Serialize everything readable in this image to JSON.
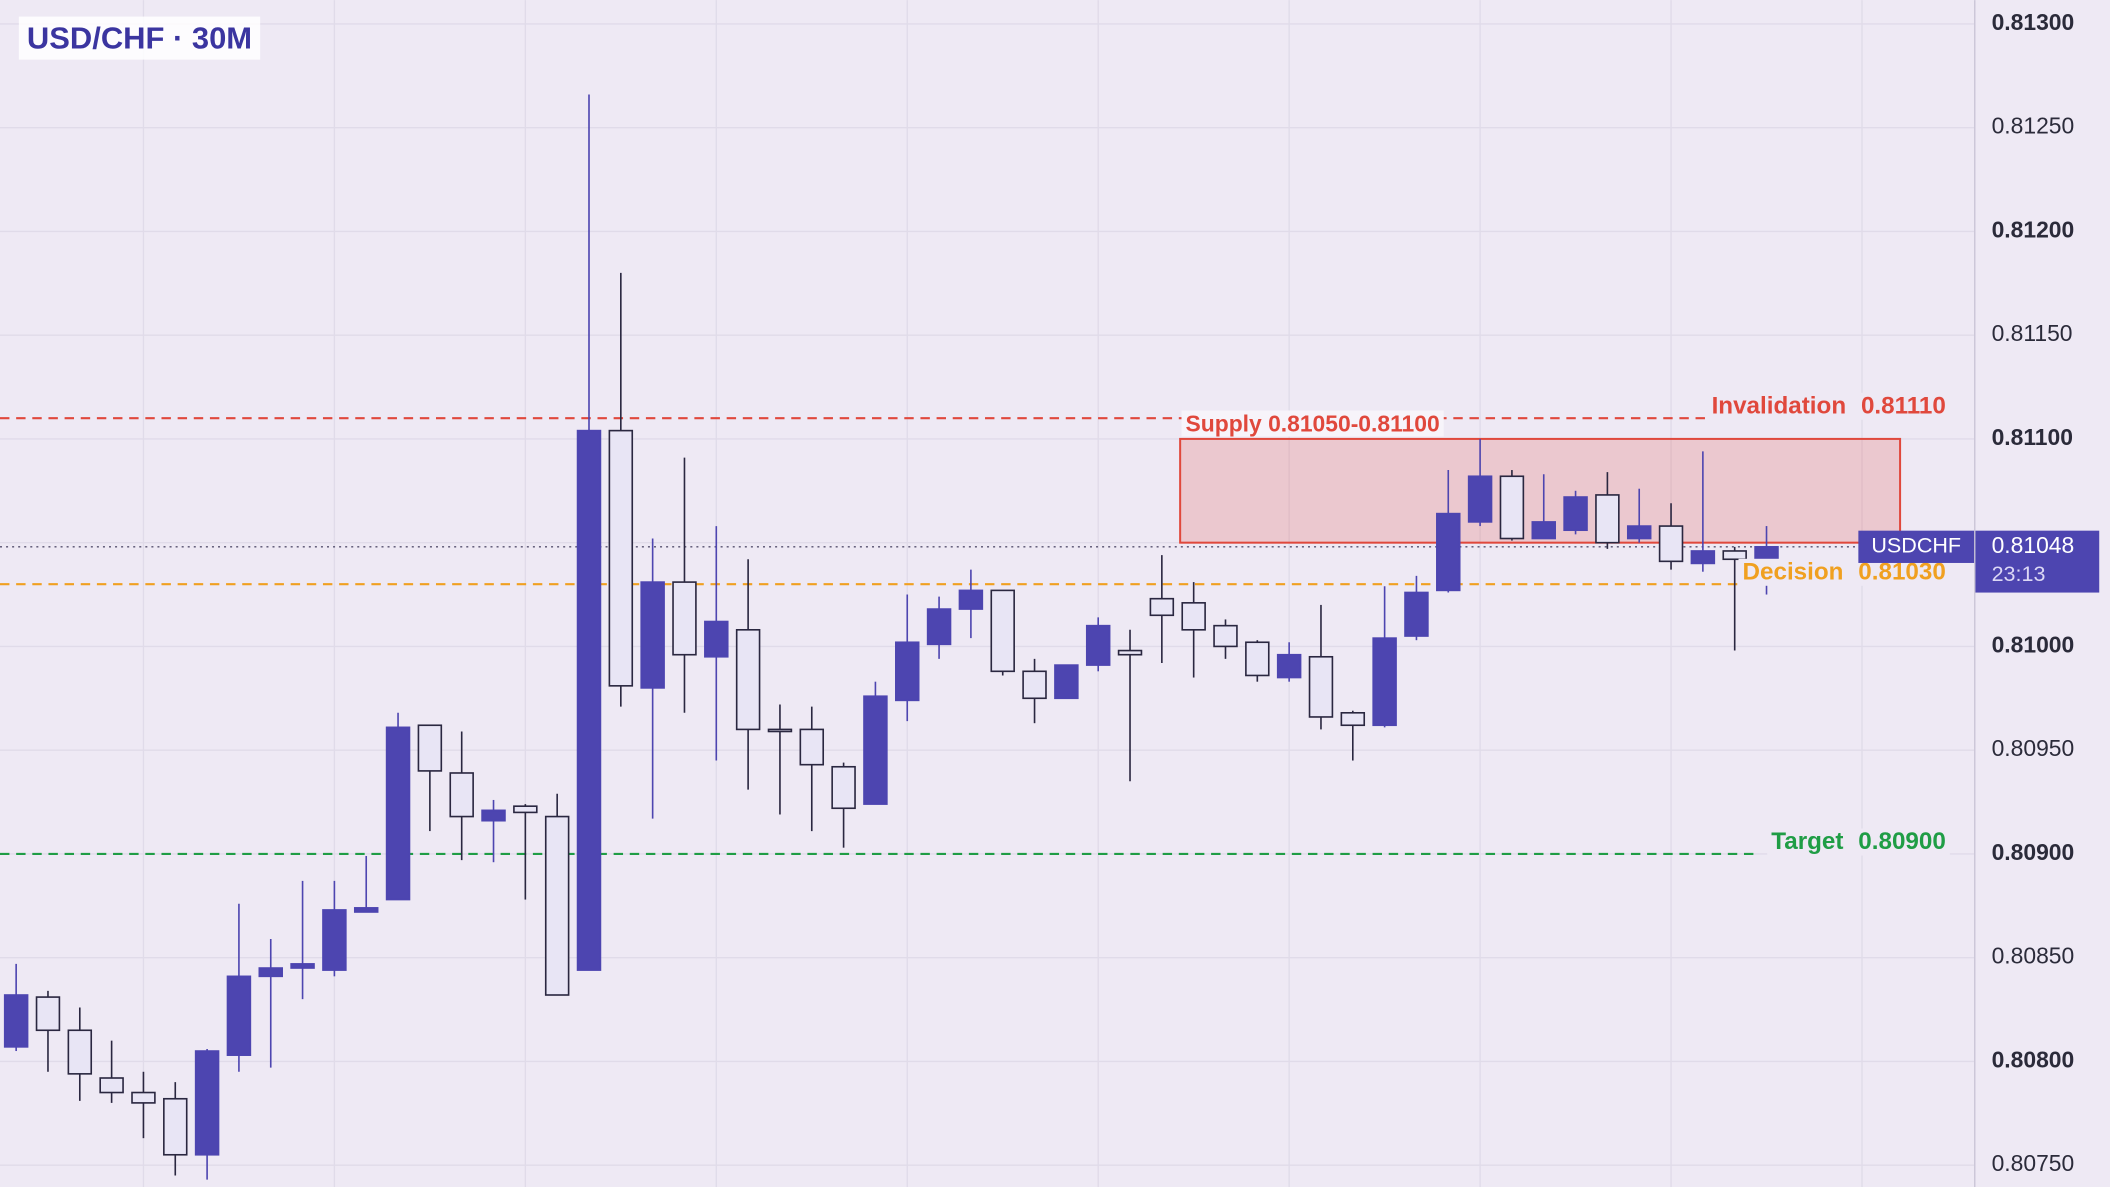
{
  "chart_data": {
    "type": "candlestick",
    "title": "USD/CHF · 30M",
    "up_color": "#4d45b0",
    "down_color": "#e8e5f5",
    "open": [
      0.80807,
      0.80831,
      0.80815,
      0.80792,
      0.80785,
      0.80782,
      0.80755,
      0.80803,
      0.80841,
      0.80845,
      0.80844,
      0.80872,
      0.80878,
      0.80962,
      0.80939,
      0.80916,
      0.80923,
      0.80918,
      0.80844,
      0.81104,
      0.8098,
      0.81031,
      0.80995,
      0.81008,
      0.8096,
      0.8096,
      0.80942,
      0.80924,
      0.80974,
      0.81001,
      0.81018,
      0.81027,
      0.80988,
      0.80975,
      0.80991,
      0.80998,
      0.81023,
      0.81021,
      0.8101,
      0.81002,
      0.80985,
      0.80995,
      0.80968,
      0.80962,
      0.81005,
      0.81027,
      0.8106,
      0.81082,
      0.81052,
      0.81056,
      0.81073,
      0.81052,
      0.81058,
      0.8104,
      0.81046,
      0.8104
    ],
    "high": [
      0.80847,
      0.80834,
      0.80826,
      0.8081,
      0.80795,
      0.8079,
      0.80806,
      0.80876,
      0.80859,
      0.80887,
      0.80887,
      0.80899,
      0.80968,
      0.80962,
      0.80959,
      0.80926,
      0.80924,
      0.80929,
      0.81266,
      0.8118,
      0.81052,
      0.81091,
      0.81058,
      0.81042,
      0.80972,
      0.80971,
      0.80944,
      0.80983,
      0.81025,
      0.81024,
      0.81037,
      0.81027,
      0.80994,
      0.80991,
      0.81014,
      0.81008,
      0.81044,
      0.81031,
      0.81013,
      0.81003,
      0.81002,
      0.8102,
      0.80969,
      0.81029,
      0.81034,
      0.81085,
      0.811,
      0.81085,
      0.81083,
      0.81075,
      0.81084,
      0.81076,
      0.81069,
      0.81094,
      0.81048,
      0.81058
    ],
    "low": [
      0.80805,
      0.80795,
      0.80781,
      0.8078,
      0.80763,
      0.80745,
      0.80743,
      0.80795,
      0.80797,
      0.8083,
      0.80841,
      0.80872,
      0.80878,
      0.80911,
      0.80897,
      0.80896,
      0.80878,
      0.80835,
      0.80844,
      0.80971,
      0.80917,
      0.80968,
      0.80945,
      0.80931,
      0.80919,
      0.80911,
      0.80903,
      0.80924,
      0.80964,
      0.80994,
      0.81004,
      0.80986,
      0.80963,
      0.80975,
      0.80988,
      0.80935,
      0.80992,
      0.80985,
      0.80994,
      0.80983,
      0.80983,
      0.8096,
      0.80945,
      0.80961,
      0.81003,
      0.81026,
      0.81058,
      0.81051,
      0.81052,
      0.81054,
      0.81047,
      0.8105,
      0.81037,
      0.81036,
      0.80998,
      0.81025
    ],
    "close": [
      0.80832,
      0.80815,
      0.80794,
      0.80785,
      0.8078,
      0.80755,
      0.80805,
      0.80841,
      0.80845,
      0.80847,
      0.80873,
      0.80874,
      0.80961,
      0.8094,
      0.80918,
      0.80921,
      0.8092,
      0.80832,
      0.81104,
      0.80981,
      0.81031,
      0.80996,
      0.81012,
      0.8096,
      0.80959,
      0.80943,
      0.80922,
      0.80976,
      0.81002,
      0.81018,
      0.81027,
      0.80988,
      0.80975,
      0.80991,
      0.8101,
      0.80996,
      0.81015,
      0.81008,
      0.81,
      0.80986,
      0.80996,
      0.80966,
      0.80962,
      0.81004,
      0.81026,
      0.81064,
      0.81082,
      0.81052,
      0.8106,
      0.81072,
      0.8105,
      0.81058,
      0.81041,
      0.81046,
      0.81042,
      0.81048
    ],
    "ylim": [
      0.807395,
      0.813115
    ],
    "yticks": [
      {
        "value": 0.8075,
        "label": "0.80750"
      },
      {
        "value": 0.808,
        "label": "0.80800"
      },
      {
        "value": 0.8085,
        "label": "0.80850"
      },
      {
        "value": 0.809,
        "label": "0.80900"
      },
      {
        "value": 0.8095,
        "label": "0.80950"
      },
      {
        "value": 0.81,
        "label": "0.81000"
      },
      {
        "value": 0.8105,
        "label": "0.81050"
      },
      {
        "value": 0.811,
        "label": "0.81100"
      },
      {
        "value": 0.8115,
        "label": "0.81150"
      },
      {
        "value": 0.812,
        "label": "0.81200"
      },
      {
        "value": 0.8125,
        "label": "0.81250"
      },
      {
        "value": 0.813,
        "label": "0.81300"
      }
    ],
    "grid": true,
    "levels": [
      {
        "name": "Invalidation",
        "value": 0.8111,
        "value_label": "0.81110",
        "color": "#e0483c"
      },
      {
        "name": "Decision",
        "value": 0.8103,
        "value_label": "0.81030",
        "color": "#f0a020"
      },
      {
        "name": "Target",
        "value": 0.809,
        "value_label": "0.80900",
        "color": "#1f9d45"
      }
    ],
    "zone": {
      "label": "Supply 0.81050-0.81100",
      "low": 0.8105,
      "high": 0.811,
      "color": "#e0483c"
    },
    "last_price": {
      "symbol": "USDCHF",
      "value": 0.81048,
      "value_label": "0.81048",
      "countdown": "23:13",
      "color": "#4d45b0"
    }
  }
}
